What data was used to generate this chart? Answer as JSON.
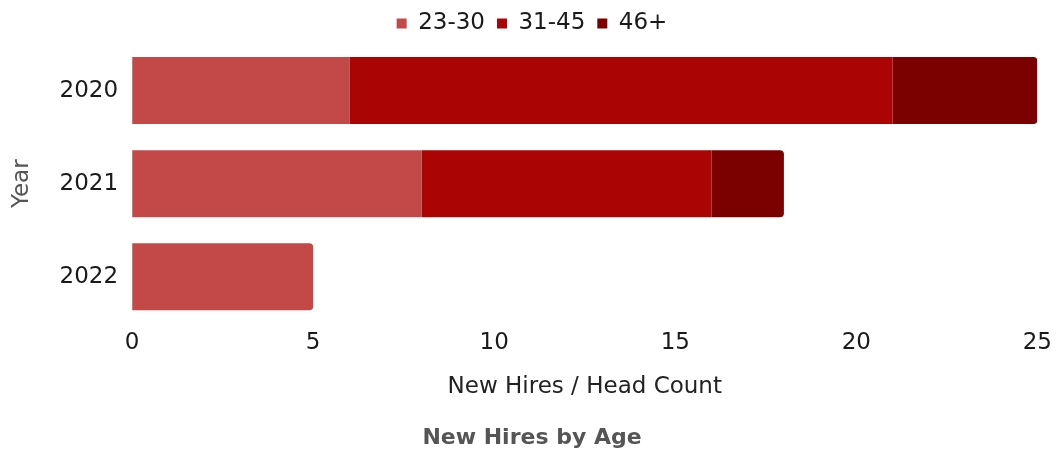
{
  "chart_data": {
    "type": "bar",
    "orientation": "horizontal",
    "stacked": true,
    "title": "New Hires by Age",
    "xlabel": "New Hires / Head Count",
    "ylabel": "Year",
    "categories": [
      "2020",
      "2021",
      "2022"
    ],
    "series": [
      {
        "name": "23-30",
        "color": "#c34848",
        "values": [
          6,
          8,
          5
        ]
      },
      {
        "name": "31-45",
        "color": "#aa0404",
        "values": [
          15,
          8,
          null
        ]
      },
      {
        "name": "46+",
        "color": "#7b0000",
        "values": [
          4,
          2,
          null
        ]
      }
    ],
    "xlim": [
      0,
      25
    ],
    "xticks": [
      0,
      5,
      10,
      15,
      20,
      25
    ],
    "grid": false,
    "legend": "top"
  }
}
